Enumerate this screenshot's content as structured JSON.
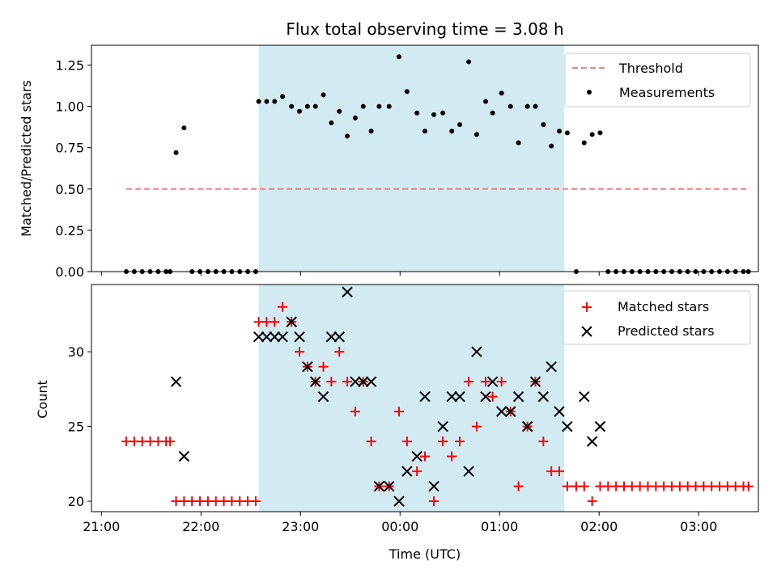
{
  "title": "Flux total observing time = 3.08 h",
  "colors": {
    "threshold": "#f08080",
    "measurements": "#000000",
    "matched": "#ff0000",
    "predicted": "#000000",
    "window": "#add8e6"
  },
  "chart_data": [
    {
      "type": "scatter",
      "ylabel": "Matched/Predicted stars",
      "xlim": [
        -0.1,
        6.6
      ],
      "ylim": [
        0,
        1.37
      ],
      "yticks": [
        0.0,
        0.25,
        0.5,
        0.75,
        1.0,
        1.25
      ],
      "ytick_labels": [
        "0.00",
        "0.25",
        "0.50",
        "0.75",
        "1.00",
        "1.25"
      ],
      "shaded_x": [
        1.58,
        4.65
      ],
      "legend": {
        "position": "top-right",
        "entries": [
          "Threshold",
          "Measurements"
        ]
      },
      "threshold": {
        "name": "Threshold",
        "y": 0.5,
        "x": [
          0.25,
          6.5
        ],
        "style": "dashed"
      },
      "series": [
        {
          "name": "Measurements",
          "points": [
            [
              0.25,
              0
            ],
            [
              0.33,
              0
            ],
            [
              0.41,
              0
            ],
            [
              0.49,
              0
            ],
            [
              0.57,
              0
            ],
            [
              0.65,
              0
            ],
            [
              0.69,
              0
            ],
            [
              0.75,
              0.72
            ],
            [
              0.83,
              0.87
            ],
            [
              0.91,
              0
            ],
            [
              0.99,
              0
            ],
            [
              1.07,
              0
            ],
            [
              1.15,
              0
            ],
            [
              1.23,
              0
            ],
            [
              1.31,
              0
            ],
            [
              1.39,
              0
            ],
            [
              1.47,
              0
            ],
            [
              1.55,
              0
            ],
            [
              1.58,
              1.03
            ],
            [
              1.66,
              1.03
            ],
            [
              1.74,
              1.03
            ],
            [
              1.82,
              1.06
            ],
            [
              1.91,
              1.0
            ],
            [
              1.99,
              0.97
            ],
            [
              2.07,
              1.0
            ],
            [
              2.15,
              1.0
            ],
            [
              2.23,
              1.07
            ],
            [
              2.31,
              0.9
            ],
            [
              2.39,
              0.97
            ],
            [
              2.47,
              0.82
            ],
            [
              2.55,
              0.93
            ],
            [
              2.63,
              1.0
            ],
            [
              2.71,
              0.85
            ],
            [
              2.79,
              1.0
            ],
            [
              2.89,
              1.0
            ],
            [
              2.99,
              1.3
            ],
            [
              3.07,
              1.09
            ],
            [
              3.17,
              0.96
            ],
            [
              3.25,
              0.85
            ],
            [
              3.34,
              0.95
            ],
            [
              3.43,
              0.96
            ],
            [
              3.52,
              0.85
            ],
            [
              3.6,
              0.89
            ],
            [
              3.69,
              1.27
            ],
            [
              3.77,
              0.83
            ],
            [
              3.86,
              1.03
            ],
            [
              3.93,
              0.96
            ],
            [
              4.02,
              1.08
            ],
            [
              4.11,
              1.0
            ],
            [
              4.19,
              0.78
            ],
            [
              4.28,
              1.0
            ],
            [
              4.36,
              1.0
            ],
            [
              4.44,
              0.89
            ],
            [
              4.52,
              0.76
            ],
            [
              4.6,
              0.85
            ],
            [
              4.68,
              0.84
            ],
            [
              4.77,
              0
            ],
            [
              4.85,
              0.78
            ],
            [
              4.93,
              0.83
            ],
            [
              5.01,
              0.84
            ],
            [
              5.09,
              0
            ],
            [
              5.17,
              0
            ],
            [
              5.25,
              0
            ],
            [
              5.33,
              0
            ],
            [
              5.41,
              0
            ],
            [
              5.49,
              0
            ],
            [
              5.57,
              0
            ],
            [
              5.65,
              0
            ],
            [
              5.73,
              0
            ],
            [
              5.81,
              0
            ],
            [
              5.89,
              0
            ],
            [
              5.97,
              0
            ],
            [
              6.05,
              0
            ],
            [
              6.13,
              0
            ],
            [
              6.21,
              0
            ],
            [
              6.29,
              0
            ],
            [
              6.37,
              0
            ],
            [
              6.45,
              0
            ],
            [
              6.5,
              0
            ]
          ]
        }
      ]
    },
    {
      "type": "scatter",
      "ylabel": "Count",
      "xlabel": "Time (UTC)",
      "xlim": [
        -0.1,
        6.6
      ],
      "ylim": [
        19.3,
        34.5
      ],
      "yticks": [
        20,
        25,
        30
      ],
      "ytick_labels": [
        "20",
        "25",
        "30"
      ],
      "xticks": [
        0,
        1,
        2,
        3,
        4,
        5,
        6
      ],
      "xtick_labels": [
        "21:00",
        "22:00",
        "23:00",
        "00:00",
        "01:00",
        "02:00",
        "03:00"
      ],
      "shaded_x": [
        1.58,
        4.65
      ],
      "legend": {
        "position": "top-right",
        "entries": [
          "Matched stars",
          "Predicted stars"
        ]
      },
      "series": [
        {
          "name": "Matched stars",
          "marker": "plus",
          "points": [
            [
              0.25,
              24
            ],
            [
              0.33,
              24
            ],
            [
              0.41,
              24
            ],
            [
              0.49,
              24
            ],
            [
              0.57,
              24
            ],
            [
              0.65,
              24
            ],
            [
              0.69,
              24
            ],
            [
              0.75,
              20
            ],
            [
              0.83,
              20
            ],
            [
              0.91,
              20
            ],
            [
              0.99,
              20
            ],
            [
              1.07,
              20
            ],
            [
              1.15,
              20
            ],
            [
              1.23,
              20
            ],
            [
              1.31,
              20
            ],
            [
              1.39,
              20
            ],
            [
              1.47,
              20
            ],
            [
              1.55,
              20
            ],
            [
              1.58,
              32
            ],
            [
              1.66,
              32
            ],
            [
              1.74,
              32
            ],
            [
              1.82,
              33
            ],
            [
              1.91,
              32
            ],
            [
              1.99,
              30
            ],
            [
              2.07,
              29
            ],
            [
              2.15,
              28
            ],
            [
              2.23,
              29
            ],
            [
              2.31,
              28
            ],
            [
              2.39,
              30
            ],
            [
              2.47,
              28
            ],
            [
              2.55,
              26
            ],
            [
              2.63,
              28
            ],
            [
              2.71,
              24
            ],
            [
              2.79,
              21
            ],
            [
              2.89,
              21
            ],
            [
              2.99,
              26
            ],
            [
              3.07,
              24
            ],
            [
              3.17,
              22
            ],
            [
              3.25,
              23
            ],
            [
              3.34,
              20
            ],
            [
              3.43,
              24
            ],
            [
              3.52,
              23
            ],
            [
              3.6,
              24
            ],
            [
              3.69,
              28
            ],
            [
              3.77,
              25
            ],
            [
              3.86,
              28
            ],
            [
              3.93,
              27
            ],
            [
              4.02,
              28
            ],
            [
              4.11,
              26
            ],
            [
              4.19,
              21
            ],
            [
              4.28,
              25
            ],
            [
              4.36,
              28
            ],
            [
              4.44,
              24
            ],
            [
              4.52,
              22
            ],
            [
              4.6,
              22
            ],
            [
              4.68,
              21
            ],
            [
              4.77,
              21
            ],
            [
              4.85,
              21
            ],
            [
              4.93,
              20
            ],
            [
              5.01,
              21
            ],
            [
              5.09,
              21
            ],
            [
              5.17,
              21
            ],
            [
              5.25,
              21
            ],
            [
              5.33,
              21
            ],
            [
              5.41,
              21
            ],
            [
              5.49,
              21
            ],
            [
              5.57,
              21
            ],
            [
              5.65,
              21
            ],
            [
              5.73,
              21
            ],
            [
              5.81,
              21
            ],
            [
              5.89,
              21
            ],
            [
              5.97,
              21
            ],
            [
              6.05,
              21
            ],
            [
              6.13,
              21
            ],
            [
              6.21,
              21
            ],
            [
              6.29,
              21
            ],
            [
              6.37,
              21
            ],
            [
              6.45,
              21
            ],
            [
              6.5,
              21
            ]
          ]
        },
        {
          "name": "Predicted stars",
          "marker": "x",
          "points": [
            [
              0.75,
              28
            ],
            [
              0.83,
              23
            ],
            [
              1.58,
              31
            ],
            [
              1.66,
              31
            ],
            [
              1.74,
              31
            ],
            [
              1.82,
              31
            ],
            [
              1.91,
              32
            ],
            [
              1.99,
              31
            ],
            [
              2.07,
              29
            ],
            [
              2.15,
              28
            ],
            [
              2.23,
              27
            ],
            [
              2.31,
              31
            ],
            [
              2.39,
              31
            ],
            [
              2.47,
              34
            ],
            [
              2.55,
              28
            ],
            [
              2.63,
              28
            ],
            [
              2.71,
              28
            ],
            [
              2.79,
              21
            ],
            [
              2.89,
              21
            ],
            [
              2.99,
              20
            ],
            [
              3.07,
              22
            ],
            [
              3.17,
              23
            ],
            [
              3.25,
              27
            ],
            [
              3.34,
              21
            ],
            [
              3.43,
              25
            ],
            [
              3.52,
              27
            ],
            [
              3.6,
              27
            ],
            [
              3.69,
              22
            ],
            [
              3.77,
              30
            ],
            [
              3.86,
              27
            ],
            [
              3.93,
              28
            ],
            [
              4.02,
              26
            ],
            [
              4.11,
              26
            ],
            [
              4.19,
              27
            ],
            [
              4.28,
              25
            ],
            [
              4.36,
              28
            ],
            [
              4.44,
              27
            ],
            [
              4.52,
              29
            ],
            [
              4.6,
              26
            ],
            [
              4.68,
              25
            ],
            [
              4.85,
              27
            ],
            [
              4.93,
              24
            ],
            [
              5.01,
              25
            ]
          ]
        }
      ]
    }
  ]
}
